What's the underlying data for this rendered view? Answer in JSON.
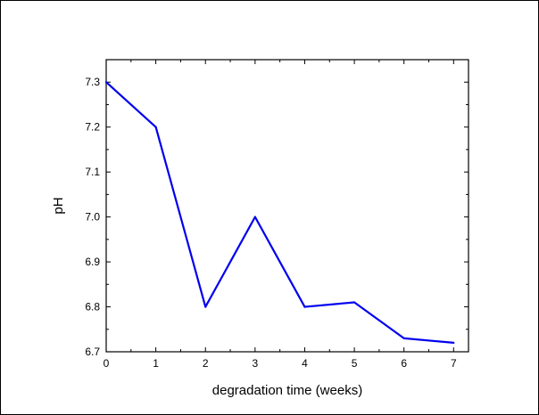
{
  "chart_data": {
    "type": "line",
    "xlabel": "degradation time (weeks)",
    "ylabel": "pH",
    "xlim": [
      0,
      7.3
    ],
    "ylim": [
      6.7,
      7.35
    ],
    "x_ticks": [
      0,
      1,
      2,
      3,
      4,
      5,
      6,
      7
    ],
    "x_tick_labels": [
      "0",
      "1",
      "2",
      "3",
      "4",
      "5",
      "6",
      "7"
    ],
    "y_ticks": [
      6.7,
      6.8,
      6.9,
      7.0,
      7.1,
      7.2,
      7.3
    ],
    "y_tick_labels": [
      "6.7",
      "6.8",
      "6.9",
      "7.0",
      "7.1",
      "7.2",
      "7.3"
    ],
    "grid": false,
    "legend": "none",
    "series": [
      {
        "color": "#0000ee",
        "x": [
          0,
          1,
          2,
          3,
          4,
          5,
          6,
          7
        ],
        "y": [
          7.3,
          7.2,
          6.8,
          7.0,
          6.8,
          6.81,
          6.73,
          6.72
        ]
      }
    ]
  }
}
